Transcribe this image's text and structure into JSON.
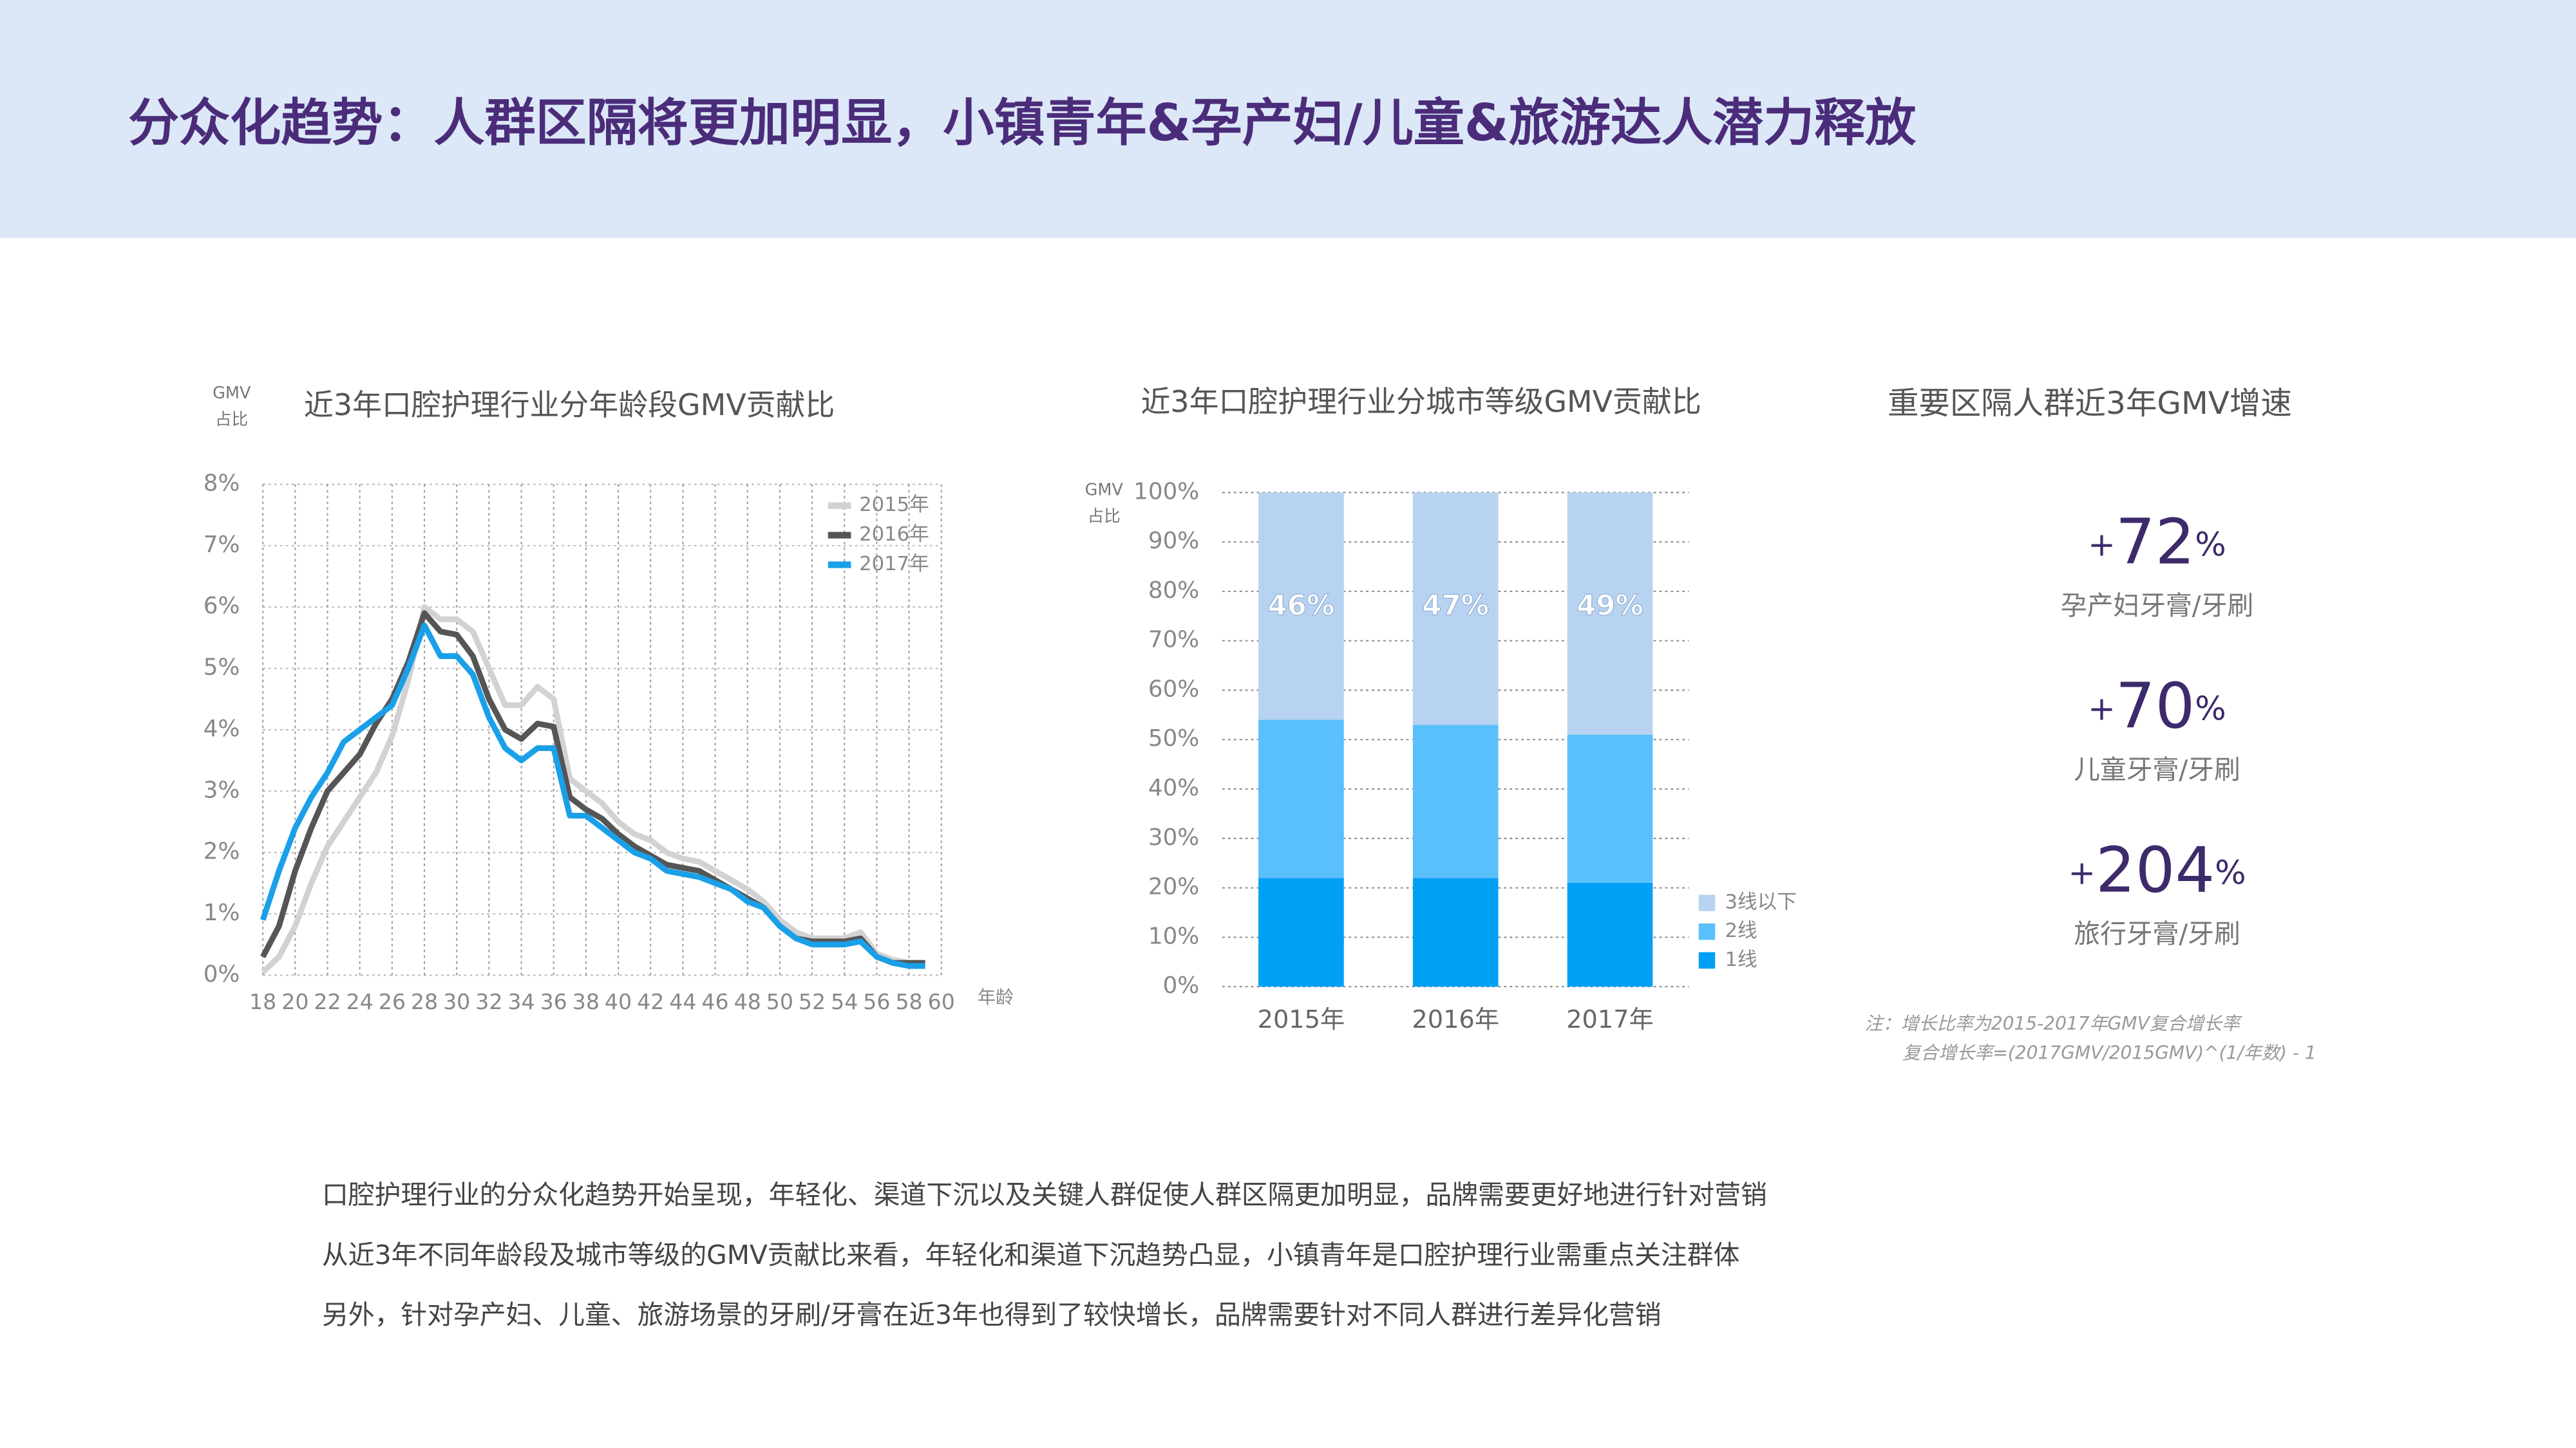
{
  "header": {
    "title": "分众化趋势：人群区隔将更加明显，小镇青年&孕产妇/儿童&旅游达人潜力释放"
  },
  "chart_data": [
    {
      "type": "line",
      "title": "近3年口腔护理行业分年龄段GMV贡献比",
      "y_label": [
        "GMV",
        "占比"
      ],
      "x_label": "年龄",
      "x": [
        18,
        19,
        20,
        21,
        22,
        23,
        24,
        25,
        26,
        27,
        28,
        29,
        30,
        31,
        32,
        33,
        34,
        35,
        36,
        37,
        38,
        39,
        40,
        41,
        42,
        43,
        44,
        45,
        46,
        47,
        48,
        49,
        50,
        51,
        52,
        53,
        54,
        55,
        56,
        57,
        58,
        59
      ],
      "series": [
        {
          "name": "2015年",
          "color": "#d2d2d2",
          "values": [
            0.05,
            0.3,
            0.8,
            1.5,
            2.1,
            2.5,
            2.9,
            3.3,
            3.9,
            4.8,
            6.0,
            5.8,
            5.8,
            5.6,
            5.0,
            4.4,
            4.4,
            4.7,
            4.5,
            3.2,
            3.0,
            2.8,
            2.5,
            2.3,
            2.2,
            2.0,
            1.9,
            1.85,
            1.7,
            1.55,
            1.4,
            1.2,
            0.9,
            0.7,
            0.6,
            0.6,
            0.6,
            0.7,
            0.35,
            0.25,
            0.2,
            0.2
          ]
        },
        {
          "name": "2016年",
          "color": "#555555",
          "values": [
            0.3,
            0.8,
            1.7,
            2.4,
            3.0,
            3.3,
            3.6,
            4.1,
            4.5,
            5.1,
            5.9,
            5.6,
            5.55,
            5.2,
            4.5,
            4.0,
            3.85,
            4.1,
            4.05,
            2.9,
            2.7,
            2.55,
            2.3,
            2.1,
            1.95,
            1.8,
            1.75,
            1.7,
            1.55,
            1.4,
            1.25,
            1.1,
            0.8,
            0.6,
            0.55,
            0.55,
            0.55,
            0.6,
            0.3,
            0.2,
            0.2,
            0.2
          ]
        },
        {
          "name": "2017年",
          "color": "#1aa0e8",
          "values": [
            0.9,
            1.7,
            2.4,
            2.9,
            3.3,
            3.8,
            4.0,
            4.2,
            4.4,
            5.0,
            5.7,
            5.2,
            5.2,
            4.9,
            4.2,
            3.7,
            3.5,
            3.7,
            3.7,
            2.6,
            2.6,
            2.4,
            2.2,
            2.0,
            1.9,
            1.7,
            1.65,
            1.6,
            1.5,
            1.4,
            1.2,
            1.1,
            0.8,
            0.6,
            0.5,
            0.5,
            0.5,
            0.55,
            0.3,
            0.2,
            0.15,
            0.15
          ]
        }
      ],
      "xlim": [
        18,
        60
      ],
      "xticks": [
        18,
        20,
        22,
        24,
        26,
        28,
        30,
        32,
        34,
        36,
        38,
        40,
        42,
        44,
        46,
        48,
        50,
        52,
        54,
        56,
        58,
        60
      ],
      "ylim": [
        0,
        8
      ],
      "yticks": [
        {
          "value": 0,
          "label": "0%"
        },
        {
          "value": 1,
          "label": "1%"
        },
        {
          "value": 2,
          "label": "2%"
        },
        {
          "value": 3,
          "label": "3%"
        },
        {
          "value": 4,
          "label": "4%"
        },
        {
          "value": 5,
          "label": "5%"
        },
        {
          "value": 6,
          "label": "6%"
        },
        {
          "value": 7,
          "label": "7%"
        },
        {
          "value": 8,
          "label": "8%"
        }
      ],
      "grid": true,
      "legend": "top-right"
    },
    {
      "type": "stacked_bar",
      "title": "近3年口腔护理行业分城市等级GMV贡献比",
      "y_label": [
        "GMV",
        "占比"
      ],
      "categories": [
        "2015年",
        "2016年",
        "2017年"
      ],
      "series": [
        {
          "name": "1线",
          "color": "#00a0f5",
          "values": [
            22,
            22,
            21
          ]
        },
        {
          "name": "2线",
          "color": "#5ac0fb",
          "values": [
            32,
            31,
            30
          ]
        },
        {
          "name": "3线以下",
          "color": "#b7d3f1",
          "values": [
            46,
            47,
            49
          ],
          "value_labels": [
            "46%",
            "47%",
            "49%"
          ]
        }
      ],
      "ylim": [
        0,
        100
      ],
      "yticks": [
        {
          "value": 0,
          "label": "0%"
        },
        {
          "value": 10,
          "label": "10%"
        },
        {
          "value": 20,
          "label": "20%"
        },
        {
          "value": 30,
          "label": "30%"
        },
        {
          "value": 40,
          "label": "40%"
        },
        {
          "value": 50,
          "label": "50%"
        },
        {
          "value": 60,
          "label": "60%"
        },
        {
          "value": 70,
          "label": "70%"
        },
        {
          "value": 80,
          "label": "80%"
        },
        {
          "value": 90,
          "label": "90%"
        },
        {
          "value": 100,
          "label": "100%"
        }
      ],
      "grid": true,
      "legend": "bottom-right"
    }
  ],
  "growth": {
    "title": "重要区隔人群近3年GMV增速",
    "items": [
      {
        "sign": "+",
        "value": 72,
        "unit": "%",
        "label": "孕产妇牙膏/牙刷"
      },
      {
        "sign": "+",
        "value": 70,
        "unit": "%",
        "label": "儿童牙膏/牙刷"
      },
      {
        "sign": "+",
        "value": 204,
        "unit": "%",
        "label": "旅行牙膏/牙刷"
      }
    ],
    "notes": [
      "注：增长比率为2015-2017年GMV复合增长率",
      "复合增长率=(2017GMV/2015GMV)^(1/年数) - 1"
    ]
  },
  "summary": [
    "口腔护理行业的分众化趋势开始呈现，年轻化、渠道下沉以及关键人群促使人群区隔更加明显，品牌需要更好地进行针对营销",
    "从近3年不同年龄段及城市等级的GMV贡献比来看，年轻化和渠道下沉趋势凸显，小镇青年是口腔护理行业需重点关注群体",
    "另外，针对孕产妇、儿童、旅游场景的牙刷/牙膏在近3年也得到了较快增长，品牌需要针对不同人群进行差异化营销"
  ]
}
